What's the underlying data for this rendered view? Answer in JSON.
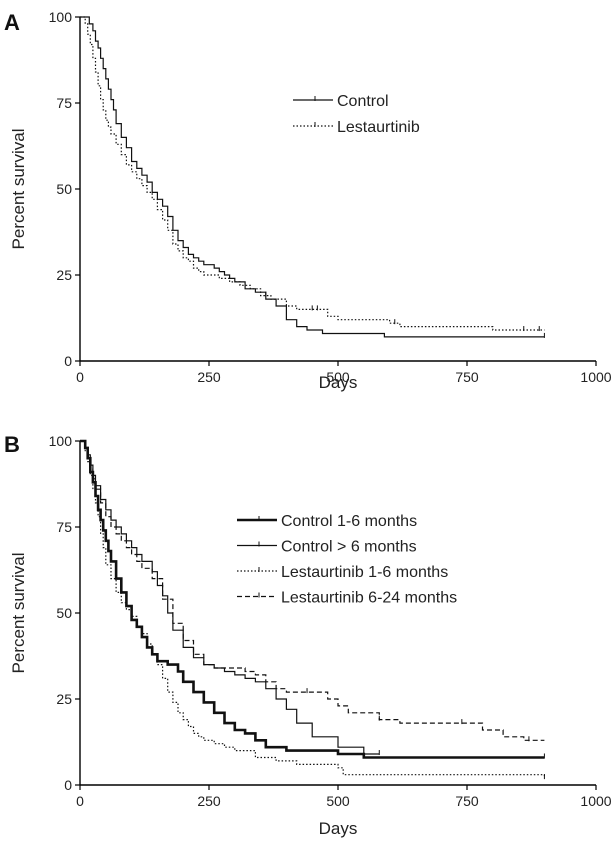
{
  "chart_data": [
    {
      "type": "line",
      "panel": "A",
      "xlabel": "Days",
      "ylabel": "Percent survival",
      "xlim": [
        0,
        1000
      ],
      "ylim": [
        0,
        100
      ],
      "xticks": [
        "0",
        "250",
        "500",
        "750",
        "1000"
      ],
      "yticks": [
        "0",
        "25",
        "50",
        "75",
        "100"
      ],
      "legend_position": "upper-right",
      "series": [
        {
          "name": "Control",
          "style": "solid",
          "width": "normal",
          "x": [
            0,
            12,
            18,
            25,
            30,
            35,
            40,
            45,
            50,
            55,
            60,
            65,
            70,
            80,
            90,
            100,
            110,
            120,
            130,
            140,
            150,
            160,
            170,
            180,
            190,
            200,
            210,
            220,
            230,
            240,
            250,
            260,
            270,
            280,
            290,
            300,
            320,
            340,
            360,
            380,
            400,
            420,
            440,
            470,
            500,
            550,
            590,
            650,
            700,
            750,
            800,
            850,
            900
          ],
          "y": [
            100,
            100,
            98,
            96,
            93,
            91,
            88,
            85,
            82,
            79,
            76,
            73,
            69,
            65,
            62,
            58,
            56,
            54,
            52,
            49,
            47,
            45,
            42,
            38,
            35,
            33,
            31,
            30,
            29,
            28,
            28,
            27,
            26,
            25,
            24,
            23,
            21,
            20,
            18,
            16,
            12,
            10,
            9,
            8,
            8,
            8,
            7,
            7,
            7,
            7,
            7,
            7,
            7
          ],
          "censored_x": [
            900
          ]
        },
        {
          "name": "Lestaurtinib",
          "style": "dotted",
          "width": "normal",
          "x": [
            0,
            10,
            15,
            20,
            25,
            30,
            35,
            40,
            45,
            50,
            55,
            60,
            70,
            80,
            90,
            100,
            110,
            120,
            130,
            140,
            150,
            160,
            170,
            180,
            190,
            200,
            210,
            220,
            230,
            240,
            250,
            270,
            290,
            310,
            330,
            350,
            370,
            400,
            420,
            450,
            480,
            500,
            550,
            600,
            620,
            650,
            700,
            750,
            780,
            800,
            850,
            900
          ],
          "y": [
            100,
            98,
            95,
            92,
            88,
            84,
            80,
            76,
            73,
            70,
            68,
            66,
            63,
            60,
            57,
            55,
            53,
            51,
            49,
            47,
            44,
            41,
            38,
            34,
            32,
            30,
            29,
            27,
            26,
            25,
            25,
            24,
            23,
            22,
            21,
            19,
            18,
            16,
            15,
            15,
            13,
            12,
            12,
            11,
            10,
            10,
            10,
            10,
            10,
            9,
            9,
            9
          ],
          "censored_x": [
            360,
            450,
            460,
            610,
            860,
            890
          ]
        }
      ]
    },
    {
      "type": "line",
      "panel": "B",
      "xlabel": "Days",
      "ylabel": "Percent survival",
      "xlim": [
        0,
        1000
      ],
      "ylim": [
        0,
        100
      ],
      "xticks": [
        "0",
        "250",
        "500",
        "750",
        "1000"
      ],
      "yticks": [
        "0",
        "25",
        "50",
        "75",
        "100"
      ],
      "legend_position": "upper-right",
      "series": [
        {
          "name": "Control 1-6 months",
          "style": "solid",
          "width": "thick",
          "x": [
            0,
            10,
            15,
            20,
            25,
            30,
            35,
            40,
            45,
            50,
            55,
            60,
            70,
            80,
            90,
            100,
            110,
            120,
            130,
            140,
            150,
            170,
            190,
            200,
            220,
            240,
            260,
            280,
            300,
            320,
            340,
            360,
            400,
            450,
            500,
            550,
            600,
            700,
            800,
            900
          ],
          "y": [
            100,
            98,
            95,
            91,
            88,
            84,
            80,
            77,
            74,
            71,
            68,
            65,
            60,
            56,
            52,
            48,
            46,
            43,
            40,
            38,
            36,
            35,
            33,
            30,
            27,
            24,
            21,
            18,
            16,
            15,
            13,
            11,
            10,
            10,
            9,
            8,
            8,
            8,
            8,
            8
          ],
          "censored_x": [
            900
          ]
        },
        {
          "name": "Control > 6 months",
          "style": "solid",
          "width": "normal",
          "x": [
            0,
            10,
            15,
            20,
            25,
            30,
            40,
            50,
            60,
            70,
            80,
            90,
            100,
            110,
            120,
            140,
            150,
            160,
            170,
            180,
            200,
            220,
            240,
            260,
            280,
            300,
            320,
            340,
            360,
            380,
            400,
            420,
            450,
            500,
            550,
            580
          ],
          "y": [
            100,
            98,
            96,
            93,
            90,
            87,
            83,
            80,
            77,
            75,
            73,
            71,
            69,
            67,
            65,
            62,
            58,
            55,
            50,
            45,
            40,
            37,
            35,
            34,
            33,
            32,
            31,
            30,
            28,
            25,
            22,
            18,
            14,
            11,
            9,
            9
          ],
          "censored_x": [
            580
          ]
        },
        {
          "name": "Lestaurtinib 1-6 months",
          "style": "dotted",
          "width": "normal",
          "x": [
            0,
            10,
            15,
            20,
            25,
            30,
            35,
            40,
            45,
            50,
            60,
            70,
            80,
            90,
            100,
            110,
            120,
            130,
            140,
            150,
            160,
            170,
            180,
            190,
            200,
            210,
            220,
            230,
            240,
            260,
            280,
            300,
            340,
            380,
            420,
            460,
            500,
            510,
            600,
            700,
            800,
            900
          ],
          "y": [
            100,
            97,
            94,
            90,
            86,
            82,
            78,
            73,
            69,
            64,
            60,
            56,
            53,
            51,
            49,
            46,
            44,
            41,
            38,
            35,
            31,
            27,
            24,
            21,
            19,
            17,
            15,
            14,
            13,
            12,
            11,
            10,
            8,
            7,
            6,
            6,
            5,
            3,
            3,
            3,
            3,
            2
          ],
          "censored_x": [
            900
          ]
        },
        {
          "name": "Lestaurtinib 6-24 months",
          "style": "dashed",
          "width": "normal",
          "x": [
            0,
            10,
            15,
            20,
            25,
            30,
            40,
            50,
            60,
            70,
            80,
            90,
            100,
            110,
            120,
            140,
            160,
            180,
            200,
            220,
            240,
            260,
            280,
            300,
            320,
            340,
            360,
            380,
            400,
            440,
            480,
            500,
            520,
            580,
            620,
            700,
            740,
            780,
            820,
            860,
            900
          ],
          "y": [
            100,
            98,
            95,
            92,
            89,
            86,
            82,
            78,
            75,
            73,
            71,
            69,
            67,
            65,
            63,
            60,
            54,
            47,
            42,
            38,
            35,
            34,
            34,
            34,
            33,
            32,
            30,
            28,
            27,
            27,
            25,
            23,
            21,
            19,
            18,
            18,
            18,
            16,
            14,
            13,
            13
          ],
          "censored_x": [
            440,
            580,
            740,
            870
          ]
        }
      ]
    }
  ]
}
